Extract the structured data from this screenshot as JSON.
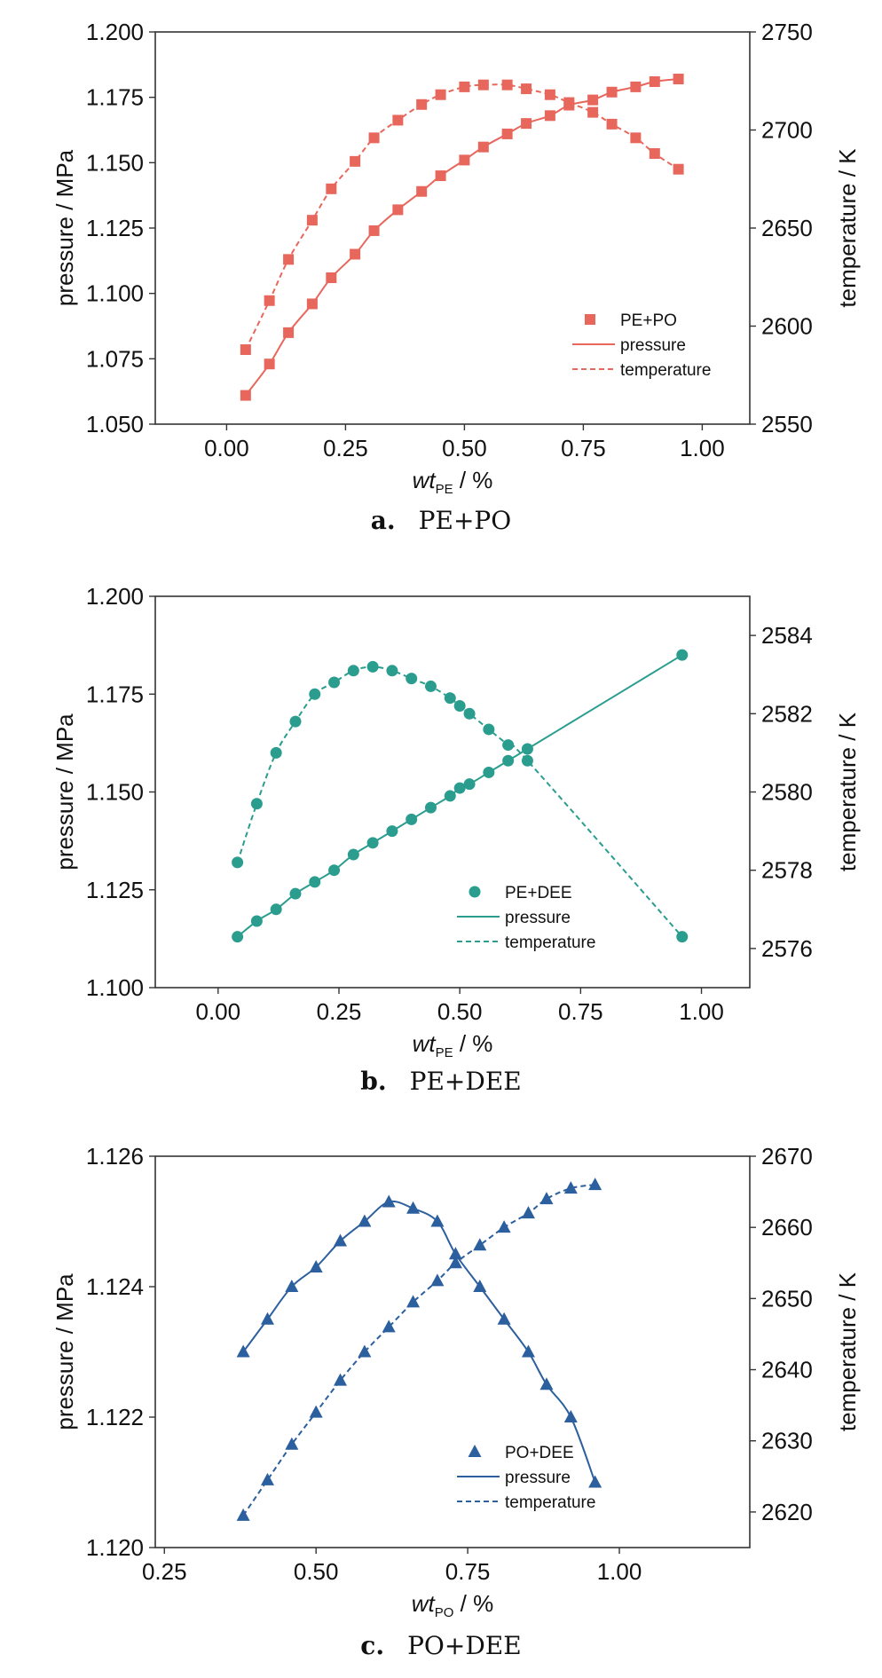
{
  "chart_data": [
    {
      "type": "line",
      "caption": {
        "letter": "a.",
        "text": "PE+PO"
      },
      "xlabel": {
        "main": "wt",
        "sub": "PE",
        "rest": " / %"
      },
      "ylabel_left": "pressure / MPa",
      "ylabel_right": "temperature / K",
      "xlim": [
        -0.15,
        1.1
      ],
      "ylim_left": [
        1.05,
        1.2
      ],
      "ylim_right": [
        2550,
        2750
      ],
      "xticks": [
        "0.00",
        "0.25",
        "0.50",
        "0.75",
        "1.00"
      ],
      "xtick_values": [
        0,
        0.25,
        0.5,
        0.75,
        1.0
      ],
      "yticks_left": [
        "1.050",
        "1.075",
        "1.100",
        "1.125",
        "1.150",
        "1.175",
        "1.200"
      ],
      "ytick_values_left": [
        1.05,
        1.075,
        1.1,
        1.125,
        1.15,
        1.175,
        1.2
      ],
      "yticks_right": [
        "2550",
        "2600",
        "2650",
        "2700",
        "2750"
      ],
      "ytick_values_right": [
        2550,
        2600,
        2650,
        2700,
        2750
      ],
      "color": "#e8675c",
      "marker": "square",
      "legend": {
        "marker_label": "PE+PO",
        "solid_label": "pressure",
        "dashed_label": "temperature",
        "placement": "bottom-right"
      },
      "pressure": {
        "x": [
          0.04,
          0.09,
          0.13,
          0.18,
          0.22,
          0.27,
          0.31,
          0.36,
          0.41,
          0.45,
          0.5,
          0.54,
          0.59,
          0.63,
          0.68,
          0.72,
          0.77,
          0.81,
          0.86,
          0.9,
          0.95
        ],
        "y": [
          1.061,
          1.073,
          1.085,
          1.096,
          1.106,
          1.115,
          1.124,
          1.132,
          1.139,
          1.145,
          1.151,
          1.156,
          1.161,
          1.165,
          1.168,
          1.172,
          1.174,
          1.177,
          1.179,
          1.181,
          1.182
        ]
      },
      "temperature": {
        "x": [
          0.04,
          0.09,
          0.13,
          0.18,
          0.22,
          0.27,
          0.31,
          0.36,
          0.41,
          0.45,
          0.5,
          0.54,
          0.59,
          0.63,
          0.68,
          0.72,
          0.77,
          0.81,
          0.86,
          0.9,
          0.95
        ],
        "y": [
          2588,
          2613,
          2634,
          2654,
          2670,
          2684,
          2696,
          2705,
          2713,
          2718,
          2722,
          2723,
          2723,
          2721,
          2718,
          2714,
          2709,
          2703,
          2696,
          2688,
          2680
        ]
      }
    },
    {
      "type": "line",
      "caption": {
        "letter": "b.",
        "text": "PE+DEE"
      },
      "xlabel": {
        "main": "wt",
        "sub": "PE",
        "rest": " / %"
      },
      "ylabel_left": "pressure / MPa",
      "ylabel_right": "temperature / K",
      "xlim": [
        -0.13,
        1.1
      ],
      "ylim_left": [
        1.1,
        1.2
      ],
      "ylim_right": [
        2575,
        2585
      ],
      "xticks": [
        "0.00",
        "0.25",
        "0.50",
        "0.75",
        "1.00"
      ],
      "xtick_values": [
        0,
        0.25,
        0.5,
        0.75,
        1.0
      ],
      "yticks_left": [
        "1.100",
        "1.125",
        "1.150",
        "1.175",
        "1.200"
      ],
      "ytick_values_left": [
        1.1,
        1.125,
        1.15,
        1.175,
        1.2
      ],
      "yticks_right": [
        "2576",
        "2578",
        "2580",
        "2582",
        "2584"
      ],
      "ytick_values_right": [
        2576,
        2578,
        2580,
        2582,
        2584
      ],
      "color": "#2a9d8f",
      "marker": "circle",
      "legend": {
        "marker_label": "PE+DEE",
        "solid_label": "pressure",
        "dashed_label": "temperature",
        "placement": "bottom-center"
      },
      "pressure": {
        "x": [
          0.04,
          0.08,
          0.12,
          0.16,
          0.2,
          0.24,
          0.28,
          0.32,
          0.36,
          0.4,
          0.44,
          0.48,
          0.5,
          0.52,
          0.56,
          0.6,
          0.64,
          0.96
        ],
        "y": [
          1.113,
          1.117,
          1.12,
          1.124,
          1.127,
          1.13,
          1.134,
          1.137,
          1.14,
          1.143,
          1.146,
          1.149,
          1.151,
          1.152,
          1.155,
          1.158,
          1.161,
          1.185
        ]
      },
      "temperature": {
        "x": [
          0.04,
          0.08,
          0.12,
          0.16,
          0.2,
          0.24,
          0.28,
          0.32,
          0.36,
          0.4,
          0.44,
          0.48,
          0.5,
          0.52,
          0.56,
          0.6,
          0.64,
          0.96
        ],
        "y": [
          2578.2,
          2579.7,
          2581.0,
          2581.8,
          2582.5,
          2582.8,
          2583.1,
          2583.2,
          2583.1,
          2582.9,
          2582.7,
          2582.4,
          2582.2,
          2582.0,
          2581.6,
          2581.2,
          2580.8,
          2576.3
        ]
      }
    },
    {
      "type": "line",
      "caption": {
        "letter": "c.",
        "text": "PO+DEE"
      },
      "xlabel": {
        "main": "wt",
        "sub": "PO",
        "rest": " / %"
      },
      "ylabel_left": "pressure / MPa",
      "ylabel_right": "temperature / K",
      "xlim": [
        0.235,
        1.215
      ],
      "ylim_left": [
        1.12,
        1.126
      ],
      "ylim_right": [
        2615,
        2670
      ],
      "xticks": [
        "0.25",
        "0.50",
        "0.75",
        "1.00"
      ],
      "xtick_values": [
        0.25,
        0.5,
        0.75,
        1.0
      ],
      "yticks_left": [
        "1.120",
        "1.122",
        "1.124",
        "1.126"
      ],
      "ytick_values_left": [
        1.12,
        1.122,
        1.124,
        1.126
      ],
      "yticks_right": [
        "2620",
        "2630",
        "2640",
        "2650",
        "2660",
        "2670"
      ],
      "ytick_values_right": [
        2620,
        2630,
        2640,
        2650,
        2660,
        2670
      ],
      "color": "#2c5f9e",
      "marker": "triangle",
      "legend": {
        "marker_label": "PO+DEE",
        "solid_label": "pressure",
        "dashed_label": "temperature",
        "placement": "bottom-center"
      },
      "pressure": {
        "x": [
          0.38,
          0.42,
          0.46,
          0.5,
          0.54,
          0.58,
          0.62,
          0.66,
          0.7,
          0.73,
          0.77,
          0.81,
          0.85,
          0.88,
          0.92,
          0.96
        ],
        "y": [
          1.123,
          1.1235,
          1.124,
          1.1243,
          1.1247,
          1.125,
          1.1253,
          1.1252,
          1.125,
          1.1245,
          1.124,
          1.1235,
          1.123,
          1.1225,
          1.122,
          1.121
        ]
      },
      "temperature": {
        "x": [
          0.38,
          0.42,
          0.46,
          0.5,
          0.54,
          0.58,
          0.62,
          0.66,
          0.7,
          0.73,
          0.77,
          0.81,
          0.85,
          0.88,
          0.92,
          0.96
        ],
        "y": [
          2619.5,
          2624.5,
          2629.5,
          2634.0,
          2638.5,
          2642.5,
          2646.0,
          2649.5,
          2652.5,
          2655.0,
          2657.5,
          2660.0,
          2662.0,
          2664.0,
          2665.5,
          2666.0
        ]
      }
    }
  ]
}
